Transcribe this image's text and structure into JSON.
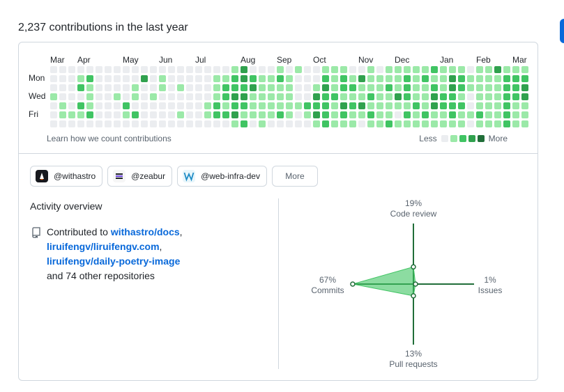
{
  "heading": "2,237 contributions in the last year",
  "calendar": {
    "months": [
      {
        "label": "Mar",
        "week": 0
      },
      {
        "label": "Apr",
        "week": 3
      },
      {
        "label": "May",
        "week": 8
      },
      {
        "label": "Jun",
        "week": 12
      },
      {
        "label": "Jul",
        "week": 16
      },
      {
        "label": "Aug",
        "week": 21
      },
      {
        "label": "Sep",
        "week": 25
      },
      {
        "label": "Oct",
        "week": 29
      },
      {
        "label": "Nov",
        "week": 34
      },
      {
        "label": "Dec",
        "week": 38
      },
      {
        "label": "Jan",
        "week": 43
      },
      {
        "label": "Feb",
        "week": 47
      },
      {
        "label": "Mar",
        "week": 51
      }
    ],
    "days": [
      "Mon",
      "Wed",
      "Fri"
    ],
    "weeks": [
      "0001000",
      "0000110",
      "0000010",
      "0120210",
      "0211120",
      "0000000",
      "0000000",
      "0001000",
      "0000210",
      "0011020",
      "0300000",
      "0001000",
      "0110000",
      "0000000",
      "0010010",
      "0000000",
      "0000000",
      "0000110",
      "0111220",
      "0122120",
      "1223231",
      "3323212",
      "0231110",
      "0111111",
      "0111110",
      "1211120",
      "0111110",
      "1000100",
      "0000210",
      "0013231",
      "1232222",
      "1112111",
      "1221321",
      "0121211",
      "0311310",
      "1112121",
      "0111111",
      "1121112",
      "1113101",
      "1222121",
      "1111211",
      "1211121",
      "2123311",
      "1112211",
      "1332221",
      "1221211",
      "0110010",
      "1111121",
      "1111111",
      "3111111",
      "1222222",
      "1222111",
      "1233111"
    ],
    "learn_text": "Learn how we count contributions",
    "legend_less": "Less",
    "legend_more": "More",
    "level_colors": [
      "#ebedf0",
      "#9be9a8",
      "#40c463",
      "#30a14e",
      "#216e39"
    ]
  },
  "orgs": [
    {
      "name": "@withastro",
      "logo": "withastro-logo"
    },
    {
      "name": "@zeabur",
      "logo": "zeabur-logo"
    },
    {
      "name": "@web-infra-dev",
      "logo": "web-infra-dev-logo"
    }
  ],
  "more_label": "More",
  "activity": {
    "title": "Activity overview",
    "contributed_prefix": "Contributed to",
    "repos": [
      "withastro/docs",
      "liruifengv/liruifengv.com",
      "liruifengv/daily-poetry-image"
    ],
    "other": "and 74 other repositories",
    "radar": {
      "code_review": {
        "label": "Code review",
        "pct": "19%",
        "value": 19
      },
      "issues": {
        "label": "Issues",
        "pct": "1%",
        "value": 1
      },
      "pull_requests": {
        "label": "Pull requests",
        "pct": "13%",
        "value": 13
      },
      "commits": {
        "label": "Commits",
        "pct": "67%",
        "value": 67
      },
      "axis_color": "#216e39",
      "fill_color": "#40c463"
    }
  }
}
